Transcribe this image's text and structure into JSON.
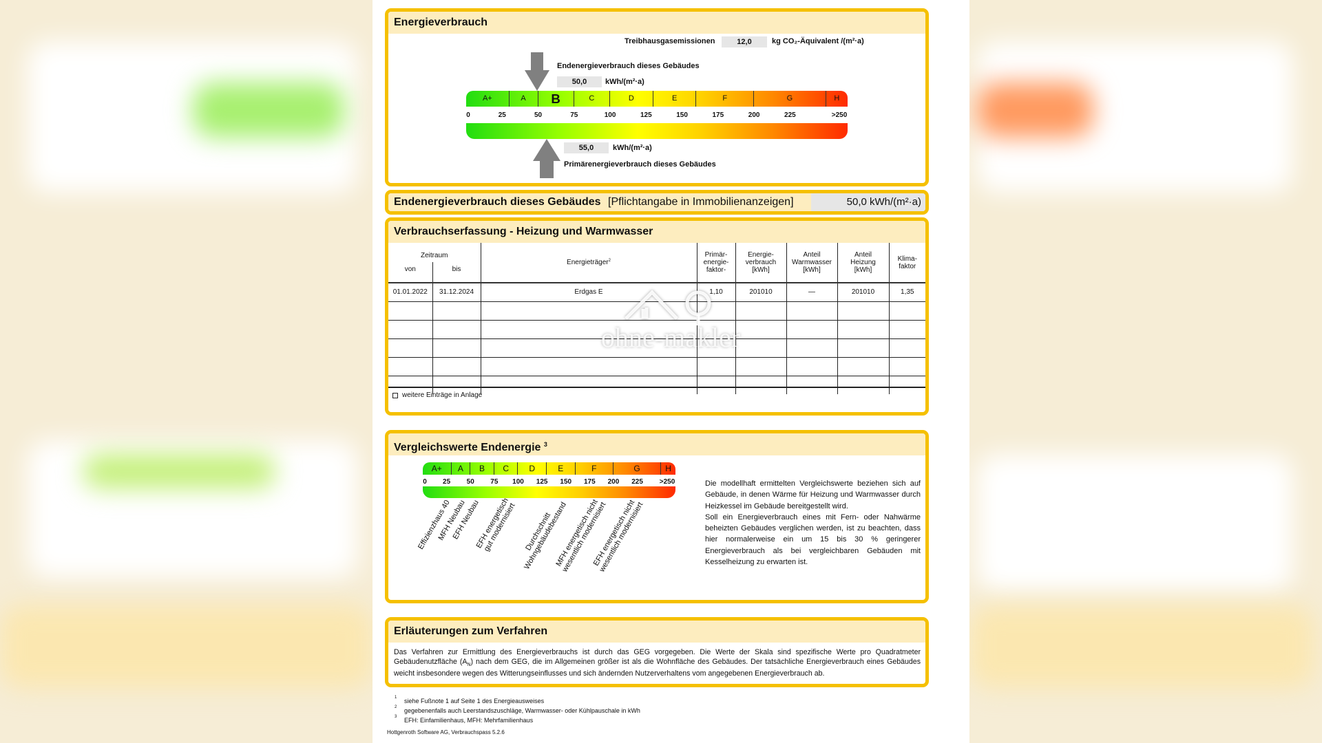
{
  "colors": {
    "frame": "#f5c000",
    "header": "#fdedbf",
    "value_box": "#e6e6e6",
    "arrow": "#808080"
  },
  "energieverbrauch": {
    "title": "Energieverbrauch",
    "thg_label": "Treibhausgasemissionen",
    "thg_value": "12,0",
    "thg_unit": "kg CO₂-Äquivalent /(m²·a)",
    "end_label": "Endenergieverbrauch dieses Gebäudes",
    "end_value": "50,0",
    "end_unit": "kWh/(m²·a)",
    "end_numeric": 50,
    "prim_label": "Primärenergieverbrauch dieses Gebäudes",
    "prim_value": "55,0",
    "prim_unit": "kWh/(m²·a)",
    "prim_numeric": 55,
    "highlight_class": "B"
  },
  "scale": {
    "classes": [
      {
        "label": "A+",
        "from": 0,
        "to": 30
      },
      {
        "label": "A",
        "from": 30,
        "to": 50
      },
      {
        "label": "B",
        "from": 50,
        "to": 75
      },
      {
        "label": "C",
        "from": 75,
        "to": 100
      },
      {
        "label": "D",
        "from": 100,
        "to": 130
      },
      {
        "label": "E",
        "from": 130,
        "to": 160
      },
      {
        "label": "F",
        "from": 160,
        "to": 200
      },
      {
        "label": "G",
        "from": 200,
        "to": 250
      },
      {
        "label": "H",
        "from": 250,
        "to": 265
      }
    ],
    "ticks": [
      "0",
      "25",
      "50",
      "75",
      "100",
      "125",
      "150",
      "175",
      "200",
      "225",
      ">250"
    ]
  },
  "pflicht": {
    "title": "Endenergieverbrauch dieses Gebäudes",
    "note": "[Pflichtangabe in Immobilienanzeigen]",
    "value": "50,0 kWh/(m²·a)"
  },
  "verbrauch": {
    "title": "Verbrauchserfassung - Heizung und Warmwasser",
    "headers": {
      "zeitraum": "Zeitraum",
      "von": "von",
      "bis": "bis",
      "traeger": "Energieträger",
      "traeger_sup": "2",
      "pef": "Primär-\nenergie-\nfaktor-",
      "ev": "Energie-\nverbrauch\n[kWh]",
      "ww": "Anteil\nWarmwasser\n[kWh]",
      "hz": "Anteil\nHeizung\n[kWh]",
      "kf": "Klima-\nfaktor"
    },
    "rows": [
      [
        "01.01.2022",
        "31.12.2024",
        "Erdgas E",
        "1,10",
        "201010",
        "—",
        "201010",
        "1,35"
      ],
      [
        "",
        "",
        "",
        "",
        "",
        "",
        "",
        ""
      ],
      [
        "",
        "",
        "",
        "",
        "",
        "",
        "",
        ""
      ],
      [
        "",
        "",
        "",
        "",
        "",
        "",
        "",
        ""
      ],
      [
        "",
        "",
        "",
        "",
        "",
        "",
        "",
        ""
      ],
      [
        "",
        "",
        "",
        "",
        "",
        "",
        "",
        ""
      ]
    ],
    "checkbox_label": "weitere Einträge in Anlage",
    "checkbox_checked": false,
    "watermark": "ohne-makler"
  },
  "vergleich": {
    "title": "Vergleichswerte Endenergie",
    "title_sup": "3",
    "labels": [
      {
        "text": "Effizienzhaus 40",
        "value": 27
      },
      {
        "text": "MFH Neubau",
        "value": 42
      },
      {
        "text": "EFH Neubau",
        "value": 57
      },
      {
        "text": "EFH energetisch\ngut modernisiert",
        "value": 92
      },
      {
        "text": "Durchschnitt\nWohngebäudebestand",
        "value": 145
      },
      {
        "text": "MFH energetisch nicht\nwesentlich modernisiert",
        "value": 186
      },
      {
        "text": "EFH energetisch nicht\nwesentlich modernisiert",
        "value": 225
      }
    ],
    "text1": "Die modellhaft ermittelten Vergleichswerte beziehen sich auf Gebäude, in denen Wärme für Heizung und Warmwasser durch Heizkessel im Gebäude bereitgestellt wird.",
    "text2": "Soll ein Energieverbrauch eines mit Fern- oder Nahwärme beheizten Gebäudes verglichen werden, ist zu beachten, dass hier normalerweise ein um 15 bis 30 % geringerer Energieverbrauch als bei vergleichbaren Gebäuden mit Kesselheizung zu erwarten ist."
  },
  "erlaeuterung": {
    "title": "Erläuterungen zum Verfahren",
    "text_a": "Das Verfahren zur Ermittlung des Energieverbrauchs ist durch das GEG vorgegeben. Die Werte der Skala sind spezifische Werte pro Quadratmeter Gebäudenutzfläche (A",
    "text_sub": "N",
    "text_b": ") nach dem GEG, die im Allgemeinen größer ist als die Wohnfläche des Gebäudes. Der tatsächliche Energieverbrauch eines Gebäudes weicht insbesondere wegen des Witterungseinflusses und sich ändernden Nutzerverhaltens vom angegebenen Energieverbrauch ab."
  },
  "footnotes": [
    {
      "n": "1",
      "text": "siehe Fußnote 1 auf Seite 1 des Energieausweises"
    },
    {
      "n": "2",
      "text": "gegebenenfalls auch Leerstandszuschläge, Warmwasser- oder Kühlpauschale in kWh"
    },
    {
      "n": "3",
      "text": "EFH: Einfamilienhaus, MFH: Mehrfamilienhaus"
    }
  ],
  "software": "Hottgenroth Software AG, Verbrauchspass 5.2.6"
}
